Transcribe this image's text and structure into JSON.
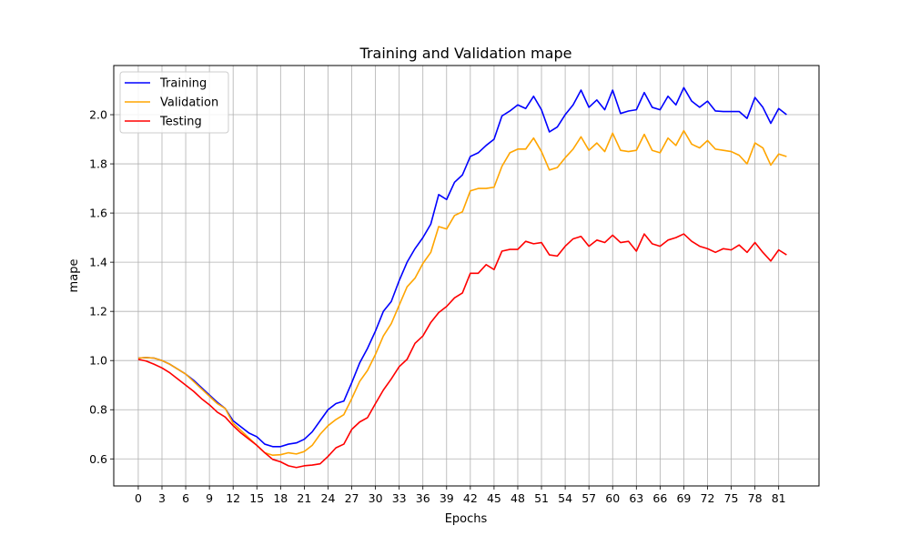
{
  "chart_data": {
    "type": "line",
    "title": "Training and Validation mape",
    "xlabel": "Epochs",
    "ylabel": "mape",
    "xlim": [
      -3.1,
      86.1
    ],
    "ylim": [
      0.49,
      2.2
    ],
    "xticks": [
      0,
      3,
      6,
      9,
      12,
      15,
      18,
      21,
      24,
      27,
      30,
      33,
      36,
      39,
      42,
      45,
      48,
      51,
      54,
      57,
      60,
      63,
      66,
      69,
      72,
      75,
      78,
      81
    ],
    "yticks": [
      0.6,
      0.8,
      1.0,
      1.2,
      1.4,
      1.6,
      1.8,
      2.0
    ],
    "grid": true,
    "legend_position": "upper-left",
    "x": [
      0,
      1,
      2,
      3,
      4,
      5,
      6,
      7,
      8,
      9,
      10,
      11,
      12,
      13,
      14,
      15,
      16,
      17,
      18,
      19,
      20,
      21,
      22,
      23,
      24,
      25,
      26,
      27,
      28,
      29,
      30,
      31,
      32,
      33,
      34,
      35,
      36,
      37,
      38,
      39,
      40,
      41,
      42,
      43,
      44,
      45,
      46,
      47,
      48,
      49,
      50,
      51,
      52,
      53,
      54,
      55,
      56,
      57,
      58,
      59,
      60,
      61,
      62,
      63,
      64,
      65,
      66,
      67,
      68,
      69,
      70,
      71,
      72,
      73,
      74,
      75,
      76,
      77,
      78,
      79,
      80,
      81,
      82
    ],
    "series": [
      {
        "name": "Training",
        "color": "#0000ff",
        "values": [
          1.01,
          1.012,
          1.01,
          1.0,
          0.985,
          0.965,
          0.945,
          0.92,
          0.89,
          0.86,
          0.83,
          0.805,
          0.755,
          0.73,
          0.705,
          0.69,
          0.66,
          0.65,
          0.65,
          0.66,
          0.665,
          0.68,
          0.71,
          0.755,
          0.8,
          0.825,
          0.835,
          0.91,
          0.99,
          1.05,
          1.12,
          1.2,
          1.24,
          1.325,
          1.4,
          1.455,
          1.5,
          1.555,
          1.675,
          1.655,
          1.725,
          1.755,
          1.83,
          1.845,
          1.875,
          1.9,
          1.995,
          2.015,
          2.04,
          2.025,
          2.075,
          2.02,
          1.93,
          1.95,
          2.0,
          2.04,
          2.1,
          2.03,
          2.06,
          2.02,
          2.1,
          2.005,
          2.015,
          2.02,
          2.09,
          2.03,
          2.02,
          2.075,
          2.04,
          2.11,
          2.055,
          2.03,
          2.055,
          2.015,
          2.013,
          2.013,
          2.013,
          1.985,
          2.07,
          2.03,
          1.965,
          2.025,
          2.0
        ]
      },
      {
        "name": "Validation",
        "color": "#ffa500",
        "values": [
          1.01,
          1.012,
          1.01,
          1.0,
          0.985,
          0.965,
          0.945,
          0.915,
          0.885,
          0.855,
          0.825,
          0.805,
          0.745,
          0.715,
          0.685,
          0.655,
          0.625,
          0.615,
          0.617,
          0.625,
          0.62,
          0.63,
          0.655,
          0.7,
          0.735,
          0.76,
          0.78,
          0.845,
          0.915,
          0.96,
          1.025,
          1.1,
          1.15,
          1.225,
          1.3,
          1.335,
          1.395,
          1.44,
          1.545,
          1.535,
          1.59,
          1.605,
          1.69,
          1.7,
          1.7,
          1.705,
          1.79,
          1.845,
          1.86,
          1.86,
          1.905,
          1.85,
          1.775,
          1.785,
          1.825,
          1.86,
          1.91,
          1.855,
          1.885,
          1.85,
          1.925,
          1.855,
          1.85,
          1.855,
          1.92,
          1.855,
          1.845,
          1.905,
          1.875,
          1.935,
          1.88,
          1.865,
          1.895,
          1.86,
          1.855,
          1.85,
          1.835,
          1.8,
          1.885,
          1.865,
          1.795,
          1.84,
          1.83
        ]
      },
      {
        "name": "Testing",
        "color": "#ff0000",
        "values": [
          1.005,
          0.998,
          0.985,
          0.97,
          0.95,
          0.925,
          0.9,
          0.875,
          0.845,
          0.82,
          0.79,
          0.77,
          0.735,
          0.705,
          0.68,
          0.655,
          0.625,
          0.598,
          0.588,
          0.572,
          0.565,
          0.572,
          0.575,
          0.58,
          0.61,
          0.645,
          0.66,
          0.72,
          0.75,
          0.768,
          0.825,
          0.88,
          0.925,
          0.975,
          1.005,
          1.07,
          1.1,
          1.155,
          1.195,
          1.22,
          1.255,
          1.275,
          1.355,
          1.355,
          1.39,
          1.37,
          1.445,
          1.452,
          1.452,
          1.485,
          1.475,
          1.48,
          1.43,
          1.425,
          1.465,
          1.495,
          1.505,
          1.465,
          1.49,
          1.48,
          1.51,
          1.48,
          1.485,
          1.445,
          1.515,
          1.475,
          1.465,
          1.49,
          1.5,
          1.515,
          1.485,
          1.465,
          1.455,
          1.44,
          1.455,
          1.45,
          1.47,
          1.44,
          1.48,
          1.44,
          1.405,
          1.45,
          1.43
        ]
      }
    ]
  }
}
